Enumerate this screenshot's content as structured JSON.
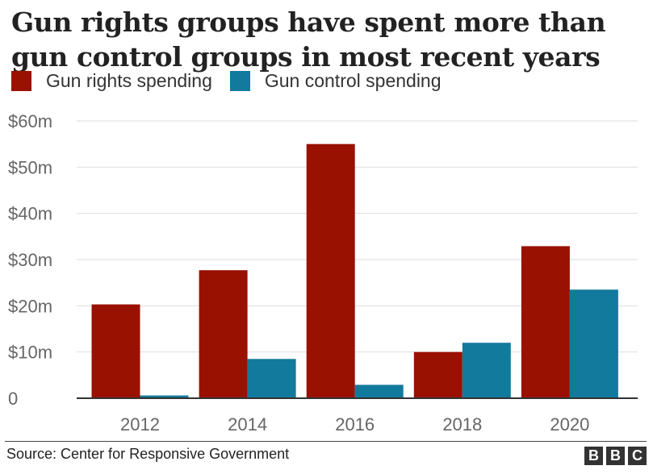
{
  "title_lines": [
    "Gun rights groups have spent more than",
    "gun control groups in most recent years"
  ],
  "source": "Source: Center for Responsive Government",
  "logo_letters": [
    "B",
    "B",
    "C"
  ],
  "chart_data": {
    "type": "bar",
    "title": "Gun rights groups have spent more than gun control groups in most recent years",
    "categories": [
      "2012",
      "2014",
      "2016",
      "2018",
      "2020"
    ],
    "series": [
      {
        "name": "Gun rights spending",
        "color": "#991100",
        "values": [
          20.3,
          27.7,
          55.0,
          10.0,
          32.9
        ]
      },
      {
        "name": "Gun control spending",
        "color": "#127a9c",
        "values": [
          0.6,
          8.5,
          2.9,
          12.0,
          23.5
        ]
      }
    ],
    "yticks": [
      {
        "value": 0,
        "label": "0"
      },
      {
        "value": 10,
        "label": "$10m"
      },
      {
        "value": 20,
        "label": "$20m"
      },
      {
        "value": 30,
        "label": "$30m"
      },
      {
        "value": 40,
        "label": "$40m"
      },
      {
        "value": 50,
        "label": "$50m"
      },
      {
        "value": 60,
        "label": "$60m"
      }
    ],
    "ylim": [
      0,
      60
    ],
    "xlabel": "",
    "ylabel": "",
    "grid": true,
    "legend_position": "top-left"
  }
}
